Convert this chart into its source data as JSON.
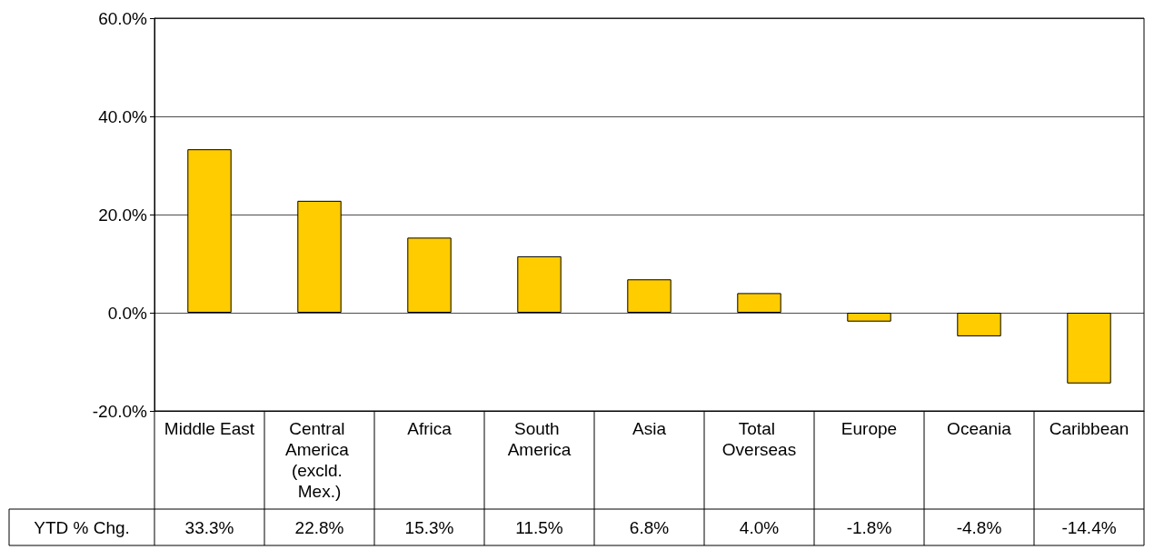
{
  "chart_data": {
    "type": "bar",
    "categories": [
      "Middle East",
      "Central America (excld. Mex.)",
      "Africa",
      "South America",
      "Asia",
      "Total Overseas",
      "Europe",
      "Oceania",
      "Caribbean"
    ],
    "series": [
      {
        "name": "YTD % Chg.",
        "color": "#ffcc00",
        "values": [
          33.3,
          22.8,
          15.3,
          11.5,
          6.8,
          4.0,
          -1.8,
          -4.8,
          -14.4
        ],
        "value_labels": [
          "33.3%",
          "22.8%",
          "15.3%",
          "11.5%",
          "6.8%",
          "4.0%",
          "-1.8%",
          "-4.8%",
          "-14.4%"
        ]
      }
    ],
    "ylim": [
      -20,
      60
    ],
    "yticks": [
      {
        "value": -20,
        "label": "-20.0%"
      },
      {
        "value": 0,
        "label": "0.0%"
      },
      {
        "value": 20,
        "label": "20.0%"
      },
      {
        "value": 40,
        "label": "40.0%"
      },
      {
        "value": 60,
        "label": "60.0%"
      }
    ],
    "grid": "y",
    "legend": "bottom left"
  }
}
